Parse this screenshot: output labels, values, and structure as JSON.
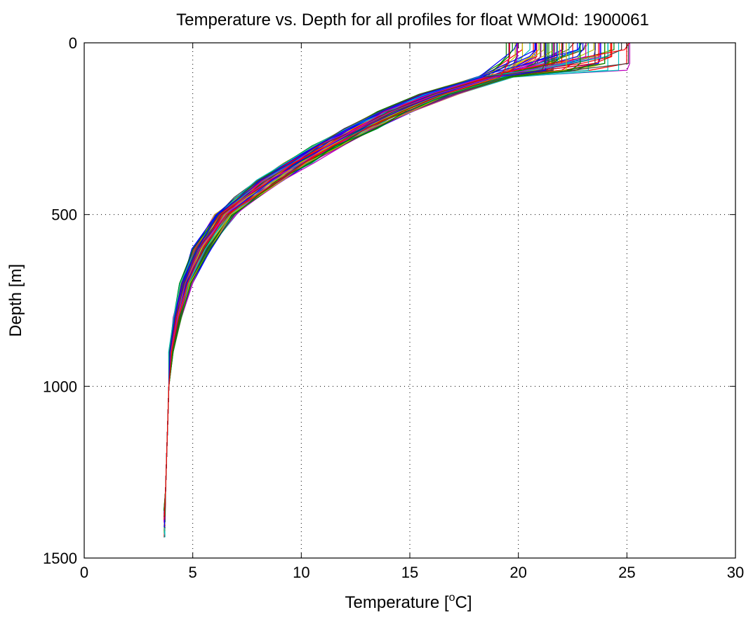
{
  "chart_data": {
    "type": "line",
    "title": "Temperature vs. Depth for all profiles for float WMOId: 1900061",
    "xlabel": "Temperature [",
    "xlabel_sup": "o",
    "xlabel_suffix": "C]",
    "ylabel": "Depth [m]",
    "xlim": [
      0,
      30
    ],
    "ylim": [
      0,
      1500
    ],
    "y_reversed": true,
    "xticks": [
      0,
      5,
      10,
      15,
      20,
      25,
      30
    ],
    "yticks": [
      0,
      500,
      1000,
      1500
    ],
    "grid": true,
    "legend": "none",
    "colors": [
      "#0000ff",
      "#008000",
      "#ff0000",
      "#00bfbf",
      "#bf00bf",
      "#bfbf00",
      "#404040"
    ],
    "depth_levels": [
      0,
      20,
      40,
      60,
      80,
      100,
      150,
      200,
      250,
      300,
      350,
      400,
      450,
      500,
      600,
      700,
      800,
      900,
      1000,
      1100,
      1200,
      1300,
      1400
    ],
    "representative_profile": {
      "depth": [
        0,
        20,
        40,
        60,
        80,
        100,
        150,
        200,
        250,
        300,
        350,
        400,
        450,
        500,
        600,
        700,
        800,
        900,
        1000,
        1100,
        1200,
        1300,
        1400
      ],
      "temperature": [
        22.5,
        22.0,
        21.0,
        20.3,
        19.6,
        18.8,
        16.3,
        14.3,
        12.7,
        11.2,
        9.9,
        8.6,
        7.5,
        6.5,
        5.4,
        4.7,
        4.3,
        4.0,
        3.9,
        3.85,
        3.8,
        3.75,
        3.7
      ]
    },
    "profile_count": 80
  }
}
